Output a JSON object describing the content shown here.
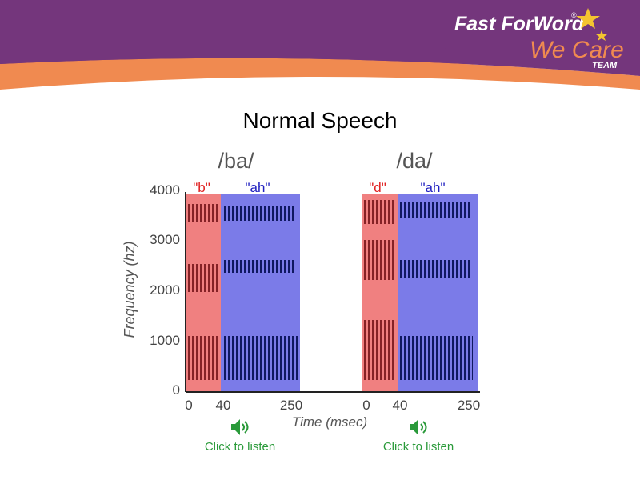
{
  "header": {
    "logo_line1": "Fast ForWord",
    "logo_registered": "®",
    "logo_line2": "We Care",
    "logo_line3": "TEAM"
  },
  "title": "Normal Speech",
  "y_axis": {
    "label": "Frequency (hz)",
    "ticks": [
      4000,
      3000,
      2000,
      1000,
      0
    ]
  },
  "x_axis": {
    "label": "Time (msec)"
  },
  "panels": [
    {
      "syllable": "/ba/",
      "consonant_label": "\"b\"",
      "vowel_label": "\"ah\"",
      "x_ticks": [
        0,
        40,
        250
      ],
      "link": "Click to listen"
    },
    {
      "syllable": "/da/",
      "consonant_label": "\"d\"",
      "vowel_label": "\"ah\"",
      "x_ticks": [
        0,
        40,
        250
      ],
      "link": "Click to listen"
    }
  ]
}
